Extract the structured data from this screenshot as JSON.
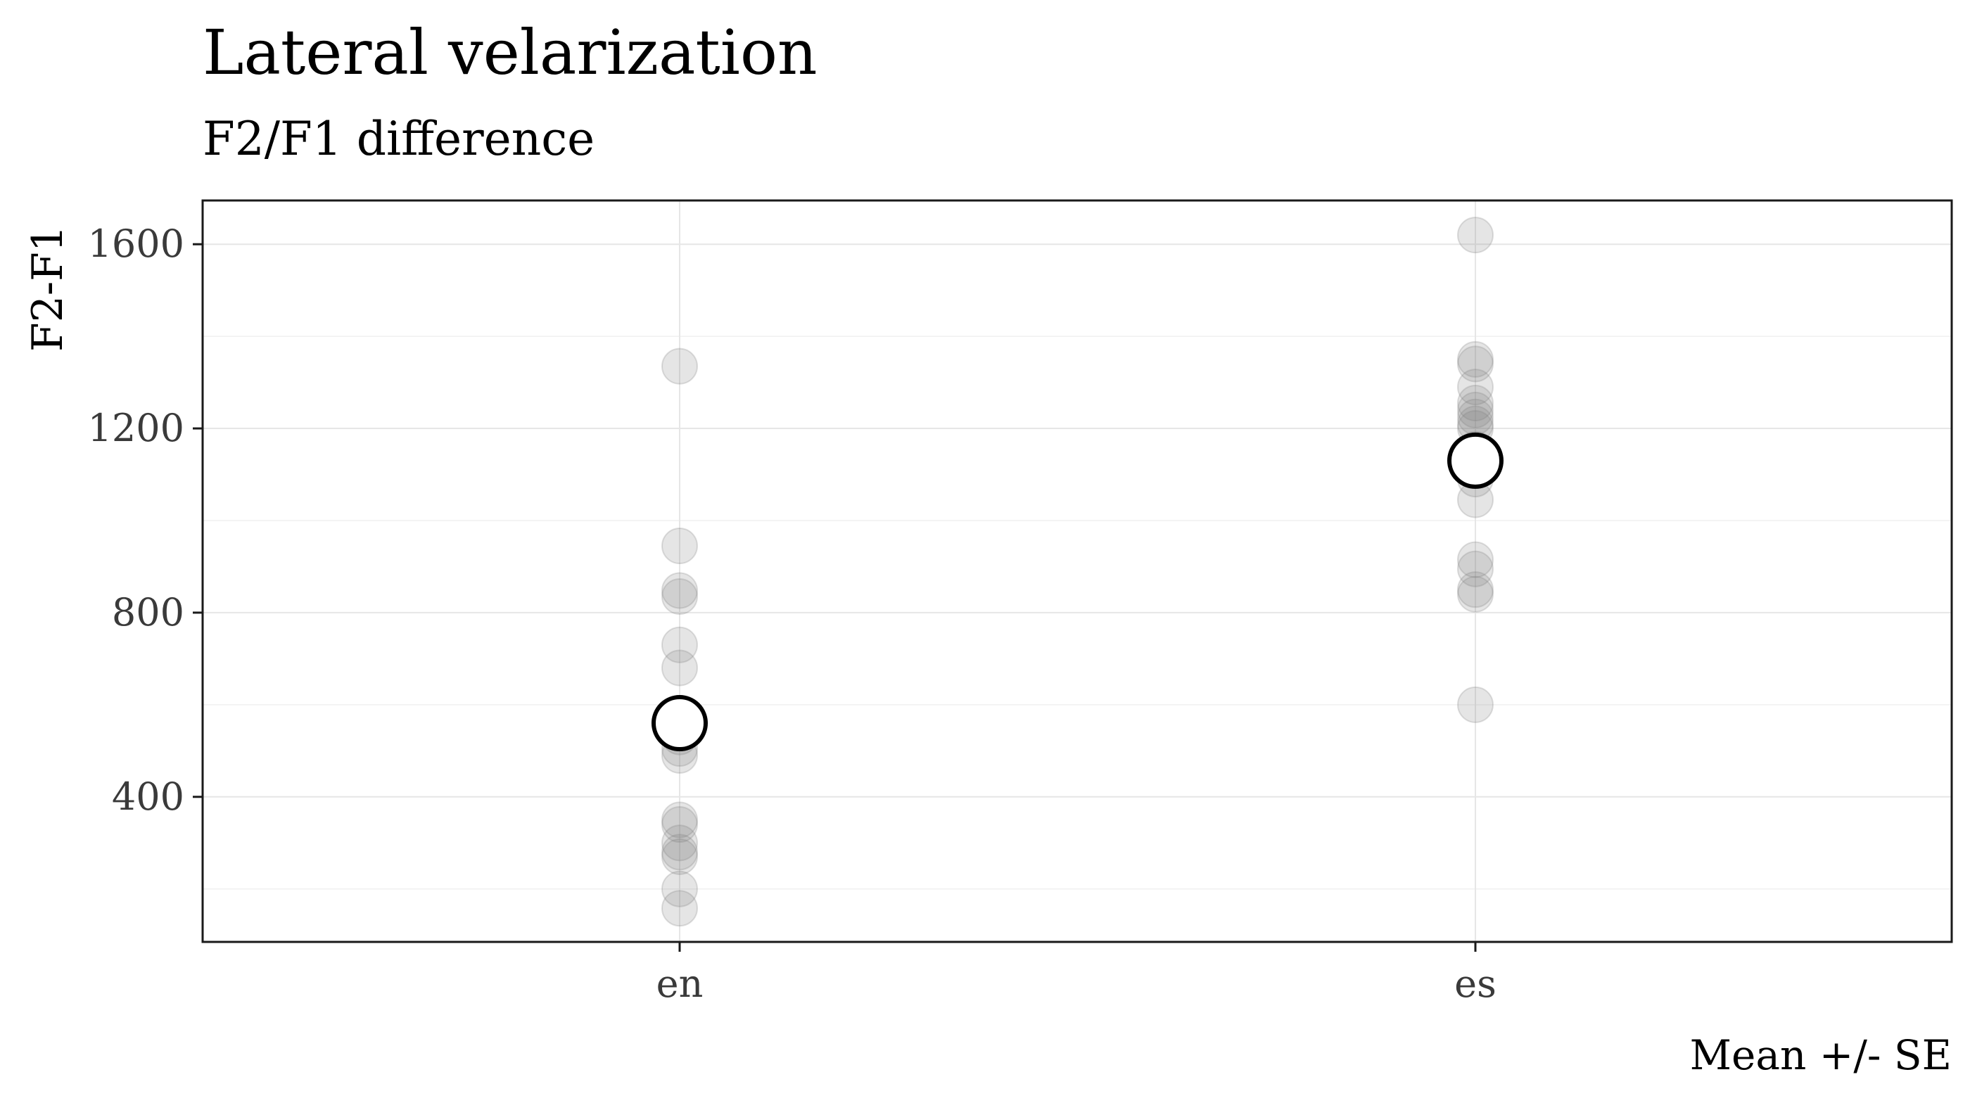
{
  "chart_data": {
    "type": "scatter",
    "title": "Lateral velarization",
    "subtitle": "F2/F1 difference",
    "xlabel": "",
    "ylabel": "F2-F1",
    "caption": "Mean +/- SE",
    "categories": [
      "en",
      "es"
    ],
    "ylim": [
      85,
      1695
    ],
    "y_ticks": [
      400,
      800,
      1200,
      1600
    ],
    "y_tick_labels": [
      "400",
      "800",
      "1200",
      "1600"
    ],
    "grid": true,
    "series": [
      {
        "role": "observations",
        "points": [
          {
            "x": "en",
            "y": 1335
          },
          {
            "x": "en",
            "y": 945
          },
          {
            "x": "en",
            "y": 848
          },
          {
            "x": "en",
            "y": 835
          },
          {
            "x": "en",
            "y": 730
          },
          {
            "x": "en",
            "y": 680
          },
          {
            "x": "en",
            "y": 560
          },
          {
            "x": "en",
            "y": 530
          },
          {
            "x": "en",
            "y": 505
          },
          {
            "x": "en",
            "y": 490
          },
          {
            "x": "en",
            "y": 350
          },
          {
            "x": "en",
            "y": 340
          },
          {
            "x": "en",
            "y": 300
          },
          {
            "x": "en",
            "y": 280
          },
          {
            "x": "en",
            "y": 270
          },
          {
            "x": "en",
            "y": 200
          },
          {
            "x": "en",
            "y": 158
          },
          {
            "x": "es",
            "y": 1620
          },
          {
            "x": "es",
            "y": 1350
          },
          {
            "x": "es",
            "y": 1340
          },
          {
            "x": "es",
            "y": 1290
          },
          {
            "x": "es",
            "y": 1255
          },
          {
            "x": "es",
            "y": 1240
          },
          {
            "x": "es",
            "y": 1225
          },
          {
            "x": "es",
            "y": 1210
          },
          {
            "x": "es",
            "y": 1200
          },
          {
            "x": "es",
            "y": 1155
          },
          {
            "x": "es",
            "y": 1090
          },
          {
            "x": "es",
            "y": 1045
          },
          {
            "x": "es",
            "y": 915
          },
          {
            "x": "es",
            "y": 895
          },
          {
            "x": "es",
            "y": 850
          },
          {
            "x": "es",
            "y": 840
          },
          {
            "x": "es",
            "y": 600
          }
        ]
      },
      {
        "role": "mean",
        "points": [
          {
            "x": "en",
            "y": 560
          },
          {
            "x": "es",
            "y": 1130
          }
        ]
      }
    ],
    "colors": {
      "observation_fill": "#7f7f7f",
      "observation_opacity": 0.2,
      "mean_stroke": "#000000",
      "mean_fill": "#ffffff",
      "panel_border": "#1a1a1a",
      "grid": "#e6e6e6",
      "tick_text": "#3a3a3a"
    }
  }
}
